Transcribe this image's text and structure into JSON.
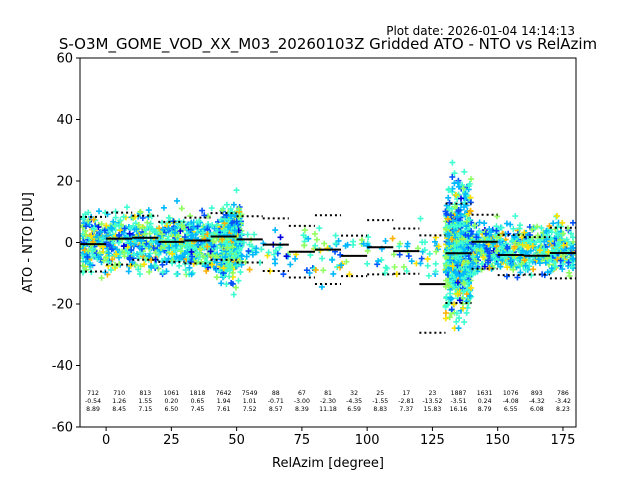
{
  "plot_date": "Plot date: 2026-01-04 14:14:13",
  "chart_data": {
    "type": "scatter",
    "title": "S-O3M_GOME_VOD_XX_M03_20260103Z Gridded ATO - NTO vs RelAzim",
    "xlabel": "RelAzim [degree]",
    "ylabel": "ATO - NTO [DU]",
    "xlim": [
      -10,
      180
    ],
    "ylim": [
      -60,
      60
    ],
    "xticks": [
      0,
      25,
      50,
      75,
      100,
      125,
      150,
      175
    ],
    "yticks": [
      -60,
      -40,
      -20,
      0,
      20,
      40,
      60
    ],
    "marker": "+",
    "point_colors": [
      "#0050ff",
      "#00b8ff",
      "#40ffd0",
      "#90ff60",
      "#ffe000",
      "#ffb000",
      "#0000e0"
    ],
    "bins": [
      {
        "x0": -10,
        "x1": 0,
        "n": "712",
        "mean": "-0.54",
        "std": "8.89"
      },
      {
        "x0": 0,
        "x1": 10,
        "n": "710",
        "mean": "1.26",
        "std": "8.45"
      },
      {
        "x0": 10,
        "x1": 20,
        "n": "813",
        "mean": "1.55",
        "std": "7.15"
      },
      {
        "x0": 20,
        "x1": 30,
        "n": "1061",
        "mean": "0.20",
        "std": "6.50"
      },
      {
        "x0": 30,
        "x1": 40,
        "n": "1818",
        "mean": "0.65",
        "std": "7.45"
      },
      {
        "x0": 40,
        "x1": 50,
        "n": "7642",
        "mean": "1.94",
        "std": "7.61"
      },
      {
        "x0": 50,
        "x1": 60,
        "n": "7549",
        "mean": "1.01",
        "std": "7.52"
      },
      {
        "x0": 60,
        "x1": 70,
        "n": "88",
        "mean": "-0.71",
        "std": "8.57"
      },
      {
        "x0": 70,
        "x1": 80,
        "n": "67",
        "mean": "-3.00",
        "std": "8.39"
      },
      {
        "x0": 80,
        "x1": 90,
        "n": "81",
        "mean": "-2.30",
        "std": "11.18"
      },
      {
        "x0": 90,
        "x1": 100,
        "n": "32",
        "mean": "-4.35",
        "std": "6.59"
      },
      {
        "x0": 100,
        "x1": 110,
        "n": "25",
        "mean": "-1.55",
        "std": "8.83"
      },
      {
        "x0": 110,
        "x1": 120,
        "n": "17",
        "mean": "-2.81",
        "std": "7.37"
      },
      {
        "x0": 120,
        "x1": 130,
        "n": "23",
        "mean": "-13.52",
        "std": "15.83"
      },
      {
        "x0": 130,
        "x1": 140,
        "n": "1887",
        "mean": "-3.51",
        "std": "16.16"
      },
      {
        "x0": 140,
        "x1": 150,
        "n": "1631",
        "mean": "0.24",
        "std": "8.79"
      },
      {
        "x0": 150,
        "x1": 160,
        "n": "1076",
        "mean": "-4.08",
        "std": "6.55"
      },
      {
        "x0": 160,
        "x1": 170,
        "n": "893",
        "mean": "-4.32",
        "std": "6.08"
      },
      {
        "x0": 170,
        "x1": 180,
        "n": "786",
        "mean": "-3.42",
        "std": "8.23"
      }
    ],
    "point_clouds": [
      {
        "x_range": [
          -10,
          51
        ],
        "y_center": 0,
        "y_spread": 14,
        "count": 950
      },
      {
        "x_range": [
          44,
          52
        ],
        "y_center": 0,
        "y_spread": 17,
        "count": 350
      },
      {
        "x_range": [
          51,
          128
        ],
        "y_center": -3,
        "y_spread": 11,
        "count": 140
      },
      {
        "x_range": [
          130,
          140
        ],
        "y_center": -2,
        "y_spread": 30,
        "count": 650
      },
      {
        "x_range": [
          140,
          180
        ],
        "y_center": -2,
        "y_spread": 12,
        "count": 600
      }
    ]
  }
}
